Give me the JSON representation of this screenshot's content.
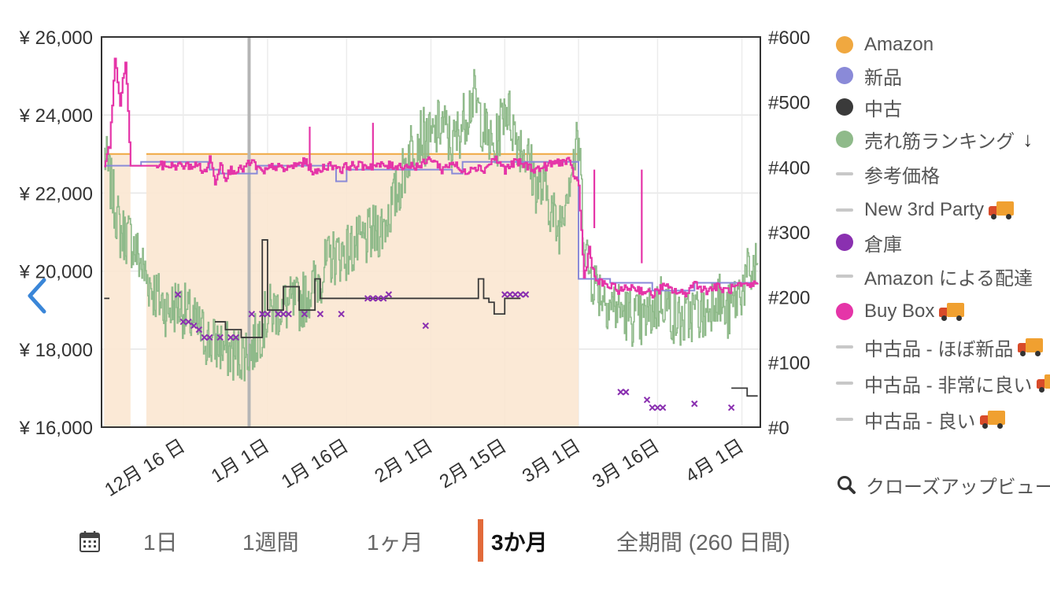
{
  "chart_data": {
    "type": "line",
    "x_ticks": [
      "12月 16 日",
      "1月 1日",
      "1月 16日",
      "2月 1日",
      "2月 15日",
      "3月 1日",
      "3月 16日",
      "4月 1日"
    ],
    "x_tick_days": [
      15,
      31,
      46,
      62,
      76,
      90,
      105,
      121
    ],
    "x_range_days": [
      -0.5,
      124.5
    ],
    "y_left": {
      "ticks": [
        "¥ 26,000",
        "¥ 24,000",
        "¥ 22,000",
        "¥ 20,000",
        "¥ 18,000",
        "¥ 16,000"
      ],
      "range": [
        16000,
        26000
      ]
    },
    "y_right": {
      "ticks": [
        "#600",
        "#500",
        "#400",
        "#300",
        "#200",
        "#100",
        "#0"
      ],
      "range": [
        0,
        600
      ]
    },
    "grid": true,
    "series": [
      {
        "name": "Amazon",
        "color": "#f0a840",
        "axis": "left",
        "segments": [
          [
            [
              0,
              23000
            ],
            [
              5,
              23000
            ]
          ],
          [
            [
              8,
              23000
            ],
            [
              90,
              23000
            ]
          ]
        ],
        "fill_ranges": [
          [
            0,
            5
          ],
          [
            8,
            90
          ]
        ]
      },
      {
        "name": "新品",
        "color": "#8a8ad8",
        "axis": "left",
        "points": [
          [
            0,
            22700
          ],
          [
            5,
            22700
          ],
          [
            7,
            22800
          ],
          [
            18,
            22800
          ],
          [
            20,
            22600
          ],
          [
            22,
            22500
          ],
          [
            27,
            22500
          ],
          [
            29,
            22700
          ],
          [
            36,
            22700
          ],
          [
            44,
            22700
          ],
          [
            44,
            22300
          ],
          [
            46,
            22600
          ],
          [
            60,
            22600
          ],
          [
            66,
            22500
          ],
          [
            68,
            22800
          ],
          [
            90,
            22800
          ],
          [
            90,
            19800
          ],
          [
            96,
            19700
          ],
          [
            104,
            19500
          ],
          [
            112,
            19700
          ],
          [
            124,
            19700
          ]
        ]
      },
      {
        "name": "中古",
        "color": "#3a3a3a",
        "axis": "left",
        "points": [
          [
            21,
            18700
          ],
          [
            23,
            18500
          ],
          [
            26,
            18300
          ],
          [
            30,
            18300
          ],
          [
            30,
            20800
          ],
          [
            31,
            20800
          ],
          [
            31,
            19000
          ],
          [
            33,
            19000
          ],
          [
            34,
            19600
          ],
          [
            37,
            19600
          ],
          [
            37,
            19000
          ],
          [
            40,
            19000
          ],
          [
            40,
            19800
          ],
          [
            41,
            19800
          ],
          [
            41,
            19300
          ],
          [
            46,
            19300
          ],
          [
            71,
            19300
          ],
          [
            71,
            19800
          ],
          [
            72,
            19800
          ],
          [
            72,
            19300
          ],
          [
            73,
            19200
          ],
          [
            74,
            18900
          ],
          [
            76,
            18900
          ],
          [
            76,
            19300
          ],
          [
            79,
            19300
          ]
        ],
        "extra": [
          [
            [
              0,
              19300
            ],
            [
              1,
              19300
            ]
          ],
          [
            [
              119,
              17000
            ],
            [
              122,
              17000
            ],
            [
              122,
              16800
            ],
            [
              124,
              16800
            ]
          ]
        ]
      },
      {
        "name": "売れ筋ランキング",
        "color": "#8fba8a",
        "axis": "right",
        "anchors": [
          [
            0,
            420
          ],
          [
            3,
            300
          ],
          [
            5,
            290
          ],
          [
            7,
            250
          ],
          [
            8,
            230
          ],
          [
            10,
            200
          ],
          [
            12,
            180
          ],
          [
            14,
            190
          ],
          [
            16,
            170
          ],
          [
            18,
            150
          ],
          [
            20,
            130
          ],
          [
            22,
            125
          ],
          [
            25,
            110
          ],
          [
            28,
            120
          ],
          [
            31,
            175
          ],
          [
            34,
            185
          ],
          [
            37,
            190
          ],
          [
            40,
            220
          ],
          [
            43,
            260
          ],
          [
            46,
            270
          ],
          [
            50,
            290
          ],
          [
            53,
            310
          ],
          [
            56,
            370
          ],
          [
            58,
            430
          ],
          [
            60,
            450
          ],
          [
            62,
            440
          ],
          [
            64,
            470
          ],
          [
            66,
            430
          ],
          [
            68,
            470
          ],
          [
            70,
            510
          ],
          [
            72,
            460
          ],
          [
            74,
            420
          ],
          [
            76,
            500
          ],
          [
            78,
            450
          ],
          [
            80,
            420
          ],
          [
            82,
            370
          ],
          [
            84,
            360
          ],
          [
            86,
            300
          ],
          [
            88,
            380
          ],
          [
            90,
            440
          ],
          [
            91,
            290
          ],
          [
            92,
            240
          ],
          [
            94,
            210
          ],
          [
            96,
            190
          ],
          [
            98,
            180
          ],
          [
            100,
            170
          ],
          [
            102,
            160
          ],
          [
            104,
            180
          ],
          [
            106,
            200
          ],
          [
            108,
            170
          ],
          [
            110,
            160
          ],
          [
            112,
            180
          ],
          [
            114,
            170
          ],
          [
            116,
            210
          ],
          [
            118,
            170
          ],
          [
            120,
            200
          ],
          [
            122,
            230
          ],
          [
            124,
            250
          ]
        ]
      },
      {
        "name": "参考価格"
      },
      {
        "name": "New 3rd Party"
      },
      {
        "name": "倉庫",
        "color": "#8a30b0",
        "axis": "left",
        "points": [
          [
            14,
            19400
          ],
          [
            15,
            18700
          ],
          [
            16,
            18700
          ],
          [
            17,
            18600
          ],
          [
            18,
            18500
          ],
          [
            19,
            18300
          ],
          [
            20,
            18300
          ],
          [
            22,
            18300
          ],
          [
            24,
            18300
          ],
          [
            25,
            18300
          ],
          [
            28,
            18900
          ],
          [
            30,
            18900
          ],
          [
            31,
            18900
          ],
          [
            33,
            18900
          ],
          [
            34,
            18900
          ],
          [
            35,
            18900
          ],
          [
            38,
            18900
          ],
          [
            41,
            18900
          ],
          [
            45,
            18900
          ],
          [
            50,
            19300
          ],
          [
            51,
            19300
          ],
          [
            52,
            19300
          ],
          [
            53,
            19300
          ],
          [
            54,
            19400
          ],
          [
            61,
            18600
          ],
          [
            76,
            19400
          ],
          [
            77,
            19400
          ],
          [
            78,
            19400
          ],
          [
            79,
            19400
          ],
          [
            80,
            19400
          ],
          [
            98,
            16900
          ],
          [
            99,
            16900
          ],
          [
            103,
            16700
          ],
          [
            104,
            16500
          ],
          [
            105,
            16500
          ],
          [
            106,
            16500
          ],
          [
            112,
            16600
          ],
          [
            119,
            16500
          ]
        ]
      },
      {
        "name": "Amazon による配達"
      },
      {
        "name": "Buy Box",
        "color": "#e535a8",
        "axis": "left",
        "anchors": [
          [
            0,
            22700
          ],
          [
            1,
            23200
          ],
          [
            2,
            25400
          ],
          [
            3,
            24300
          ],
          [
            4,
            25400
          ],
          [
            5,
            22700
          ],
          [
            10,
            22700
          ],
          [
            18,
            22700
          ],
          [
            19,
            22500
          ],
          [
            20,
            22900
          ],
          [
            21,
            22300
          ],
          [
            22,
            22800
          ],
          [
            23,
            22400
          ],
          [
            24,
            22600
          ],
          [
            26,
            22600
          ],
          [
            28,
            22800
          ],
          [
            30,
            22500
          ],
          [
            32,
            22700
          ],
          [
            34,
            22600
          ],
          [
            36,
            22700
          ],
          [
            38,
            22800
          ],
          [
            40,
            22500
          ],
          [
            42,
            22700
          ],
          [
            44,
            22700
          ],
          [
            45,
            22600
          ],
          [
            46,
            22700
          ],
          [
            60,
            22700
          ],
          [
            62,
            22900
          ],
          [
            64,
            22600
          ],
          [
            66,
            22800
          ],
          [
            68,
            22500
          ],
          [
            70,
            22700
          ],
          [
            72,
            22600
          ],
          [
            74,
            22900
          ],
          [
            76,
            22600
          ],
          [
            78,
            22800
          ],
          [
            80,
            22700
          ],
          [
            82,
            22600
          ],
          [
            84,
            22700
          ],
          [
            86,
            22800
          ],
          [
            88,
            22800
          ],
          [
            90,
            22200
          ],
          [
            91,
            19800
          ],
          [
            92,
            20600
          ],
          [
            93,
            19800
          ],
          [
            94,
            19700
          ],
          [
            96,
            19600
          ],
          [
            98,
            19500
          ],
          [
            100,
            19600
          ],
          [
            102,
            19500
          ],
          [
            104,
            19400
          ],
          [
            106,
            19600
          ],
          [
            108,
            19500
          ],
          [
            110,
            19400
          ],
          [
            112,
            19700
          ],
          [
            114,
            19500
          ],
          [
            116,
            19600
          ],
          [
            118,
            19500
          ],
          [
            120,
            19600
          ],
          [
            122,
            19600
          ],
          [
            124,
            19700
          ]
        ],
        "spikes": [
          [
            39,
            23700
          ],
          [
            51,
            23800
          ],
          [
            93,
            21100
          ],
          [
            102,
            20200
          ]
        ]
      },
      {
        "name": "中古品 - ほぼ新品"
      },
      {
        "name": "中古品 - 非常に良い"
      },
      {
        "name": "中古品 - 良い"
      }
    ],
    "vertical_marker_day": 27.5
  },
  "legend": {
    "items": [
      {
        "label": "Amazon",
        "kind": "dot",
        "color": "#f0a840",
        "icon": ""
      },
      {
        "label": "新品",
        "kind": "dot",
        "color": "#8a8ad8",
        "icon": ""
      },
      {
        "label": "中古",
        "kind": "dot",
        "color": "#3a3a3a",
        "icon": ""
      },
      {
        "label": "売れ筋ランキング",
        "kind": "dot",
        "color": "#8fba8a",
        "icon": "down-arrow-icon"
      },
      {
        "label": "参考価格",
        "kind": "line",
        "color": "#c8c8c8",
        "icon": ""
      },
      {
        "label": "New 3rd Party",
        "kind": "line",
        "color": "#c8c8c8",
        "icon": "truck-icon"
      },
      {
        "label": "倉庫",
        "kind": "dot",
        "color": "#8a30b0",
        "icon": ""
      },
      {
        "label": "Amazon による配達",
        "kind": "line",
        "color": "#c8c8c8",
        "icon": ""
      },
      {
        "label": "Buy Box",
        "kind": "dot",
        "color": "#e535a8",
        "icon": "truck-icon"
      },
      {
        "label": "中古品 - ほぼ新品",
        "kind": "line",
        "color": "#c8c8c8",
        "icon": "truck-icon"
      },
      {
        "label": "中古品 - 非常に良い",
        "kind": "line",
        "color": "#c8c8c8",
        "icon": "truck-icon"
      },
      {
        "label": "中古品 - 良い",
        "kind": "line",
        "color": "#c8c8c8",
        "icon": "truck-icon"
      }
    ],
    "closeup_label": "クローズアップビュー"
  },
  "range_selector": {
    "icon": "calendar-icon",
    "options": [
      "1日",
      "1週間",
      "1ヶ月",
      "3か月",
      "全期間 (260 日間)"
    ],
    "active": "3か月",
    "active_color": "#e26a3a"
  },
  "nav": {
    "prev_icon": "chevron-left-icon",
    "color": "#3a86d8"
  }
}
